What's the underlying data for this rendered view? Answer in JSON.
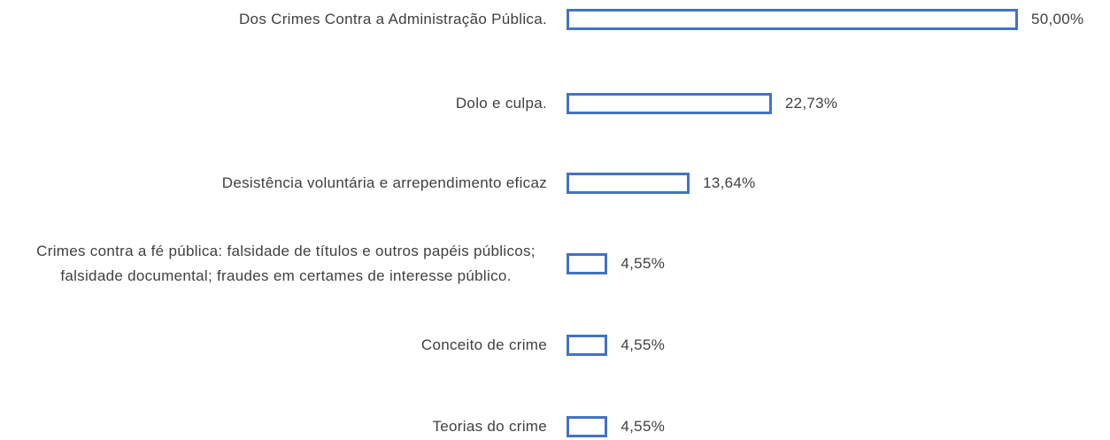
{
  "chart_data": {
    "type": "bar",
    "orientation": "horizontal",
    "categories": [
      "Dos Crimes Contra a Administração Pública.",
      "Dolo e culpa.",
      "Desistência voluntária e arrependimento eficaz",
      "Crimes contra a fé pública: falsidade de títulos e outros papéis públicos; falsidade documental; fraudes em certames de interesse público.",
      "Conceito de crime",
      "Teorias do crime"
    ],
    "values": [
      50,
      22.73,
      13.64,
      4.55,
      4.55,
      4.55
    ],
    "value_labels": [
      "50,00%",
      "22,73%",
      "13,64%",
      "4,55%",
      "4,55%",
      "4,55%"
    ],
    "color": "#4472c4"
  }
}
